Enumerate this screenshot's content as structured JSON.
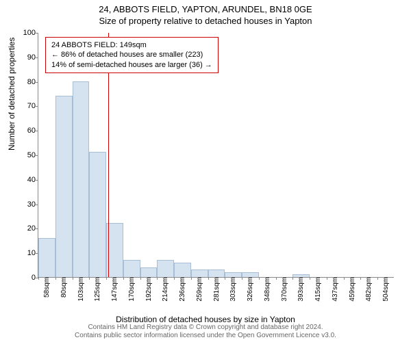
{
  "title_main": "24, ABBOTS FIELD, YAPTON, ARUNDEL, BN18 0GE",
  "title_sub": "Size of property relative to detached houses in Yapton",
  "y_label": "Number of detached properties",
  "x_label": "Distribution of detached houses by size in Yapton",
  "footer_line1": "Contains HM Land Registry data © Crown copyright and database right 2024.",
  "footer_line2": "Contains public sector information licensed under the Open Government Licence v3.0.",
  "chart": {
    "type": "bar",
    "ylim": [
      0,
      100
    ],
    "yticks": [
      0,
      10,
      20,
      30,
      40,
      50,
      60,
      70,
      80,
      90,
      100
    ],
    "xtick_labels": [
      "58sqm",
      "80sqm",
      "103sqm",
      "125sqm",
      "147sqm",
      "170sqm",
      "192sqm",
      "214sqm",
      "236sqm",
      "259sqm",
      "281sqm",
      "303sqm",
      "326sqm",
      "348sqm",
      "370sqm",
      "393sqm",
      "415sqm",
      "437sqm",
      "459sqm",
      "482sqm",
      "504sqm"
    ],
    "bar_values": [
      16,
      74,
      80,
      51,
      22,
      7,
      4,
      7,
      6,
      3,
      3,
      2,
      2,
      0,
      0,
      1,
      0,
      0,
      0,
      0,
      0
    ],
    "bar_fill": "#d5e2f0",
    "bar_stroke": "#a8bdd6",
    "bar_width_ratio": 1.0,
    "background": "#ffffff",
    "marker_position": 4.1,
    "marker_color": "#cc0000",
    "info_box": {
      "border_color": "#cc0000",
      "line1": "24 ABBOTS FIELD: 149sqm",
      "line2": "← 86% of detached houses are smaller (223)",
      "line3": "14% of semi-detached houses are larger (36) →"
    }
  }
}
